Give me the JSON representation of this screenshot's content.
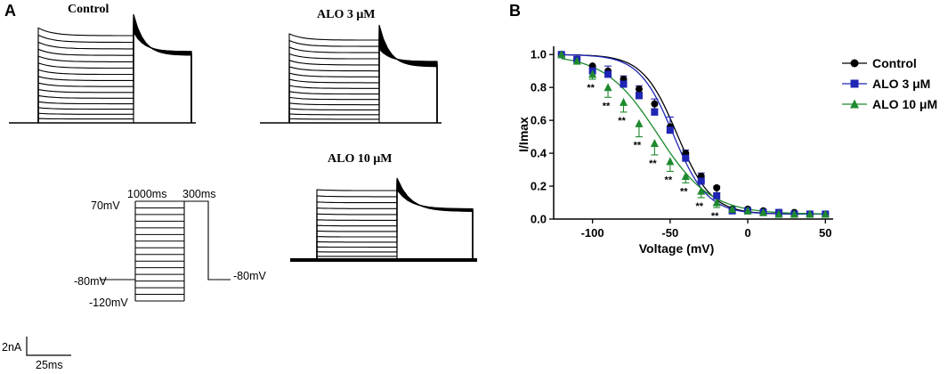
{
  "panel_a": {
    "label": "A",
    "traces": [
      {
        "title": "Control",
        "sweeps": 16,
        "peak_decay": 0.35,
        "tail_spread": 0.22
      },
      {
        "title": "ALO 3 μM",
        "sweeps": 16,
        "peak_decay": 0.3,
        "tail_spread": 0.3
      },
      {
        "title": "ALO 10 μM",
        "sweeps": 14,
        "peak_decay": 0.05,
        "tail_spread": 0.15
      }
    ],
    "protocol": {
      "durations": [
        "1000ms",
        "300ms"
      ],
      "voltages": [
        "70mV",
        "-80mV",
        "-120mV",
        "-80mV"
      ]
    },
    "scale_bar": {
      "current": "2nA",
      "time": "25ms"
    }
  },
  "panel_b": {
    "label": "B"
  },
  "chart_data": {
    "type": "scatter",
    "title": "",
    "xlabel": "Voltage (mV)",
    "ylabel": "I/Imax",
    "xlim": [
      -125,
      55
    ],
    "ylim": [
      0,
      1.05
    ],
    "x_ticks": [
      -100,
      -50,
      0,
      50
    ],
    "x_tick_labels": [
      "-100",
      "-50",
      "0",
      "50"
    ],
    "y_ticks": [
      0.0,
      0.2,
      0.4,
      0.6,
      0.8,
      1.0
    ],
    "y_tick_labels": [
      "0.0",
      "0.2",
      "0.4",
      "0.6",
      "0.8",
      "1.0"
    ],
    "legend_position": "top-right",
    "significance_marker": "**",
    "series": [
      {
        "name": "Control",
        "color": "#000000",
        "marker": "circle",
        "x": [
          -120,
          -110,
          -100,
          -90,
          -80,
          -70,
          -60,
          -50,
          -40,
          -30,
          -20,
          -10,
          0,
          10,
          20,
          30,
          40,
          50
        ],
        "y": [
          1.0,
          0.97,
          0.93,
          0.9,
          0.85,
          0.79,
          0.7,
          0.56,
          0.4,
          0.26,
          0.19,
          0.06,
          0.06,
          0.05,
          0.04,
          0.04,
          0.03,
          0.03
        ],
        "err": [
          0,
          0,
          0,
          0,
          0.02,
          0.02,
          0.03,
          0.03,
          0.03,
          0.03,
          0.03,
          0.02,
          0,
          0,
          0,
          0,
          0,
          0
        ],
        "fit": {
          "v_half": -45.5,
          "k": 11,
          "bottom": 0.03
        }
      },
      {
        "name": "ALO 3 μM",
        "color": "#1f25b4",
        "marker": "square",
        "x": [
          -120,
          -110,
          -100,
          -90,
          -80,
          -70,
          -60,
          -50,
          -40,
          -30,
          -20,
          -10,
          0,
          10,
          20,
          30,
          40,
          50
        ],
        "y": [
          1.0,
          0.97,
          0.9,
          0.88,
          0.82,
          0.75,
          0.65,
          0.54,
          0.37,
          0.23,
          0.14,
          0.05,
          0.05,
          0.04,
          0.04,
          0.03,
          0.03,
          0.03
        ],
        "err": [
          0,
          0,
          0.03,
          0.05,
          0.05,
          0.06,
          0.08,
          0.08,
          0.05,
          0.05,
          0.06,
          0.02,
          0,
          0,
          0,
          0,
          0,
          0
        ],
        "fit": {
          "v_half": -48,
          "k": 11,
          "bottom": 0.03
        }
      },
      {
        "name": "ALO 10 μM",
        "color": "#1e8a2e",
        "marker": "triangle",
        "x": [
          -120,
          -110,
          -100,
          -90,
          -80,
          -70,
          -60,
          -50,
          -40,
          -30,
          -20,
          -10,
          0,
          10,
          20,
          30,
          40,
          50
        ],
        "y": [
          1.0,
          0.96,
          0.88,
          0.8,
          0.71,
          0.58,
          0.46,
          0.35,
          0.26,
          0.17,
          0.1,
          0.06,
          0.05,
          0.04,
          0.03,
          0.03,
          0.03,
          0.03
        ],
        "err": [
          0,
          0,
          0.03,
          0.06,
          0.06,
          0.08,
          0.07,
          0.06,
          0.04,
          0.04,
          0.03,
          0.02,
          0,
          0,
          0,
          0,
          0,
          0
        ],
        "fit": {
          "v_half": -58,
          "k": 17,
          "bottom": 0.03
        }
      }
    ],
    "significant_at": [
      -100,
      -90,
      -80,
      -70,
      -60,
      -50,
      -40,
      -30,
      -20
    ]
  }
}
